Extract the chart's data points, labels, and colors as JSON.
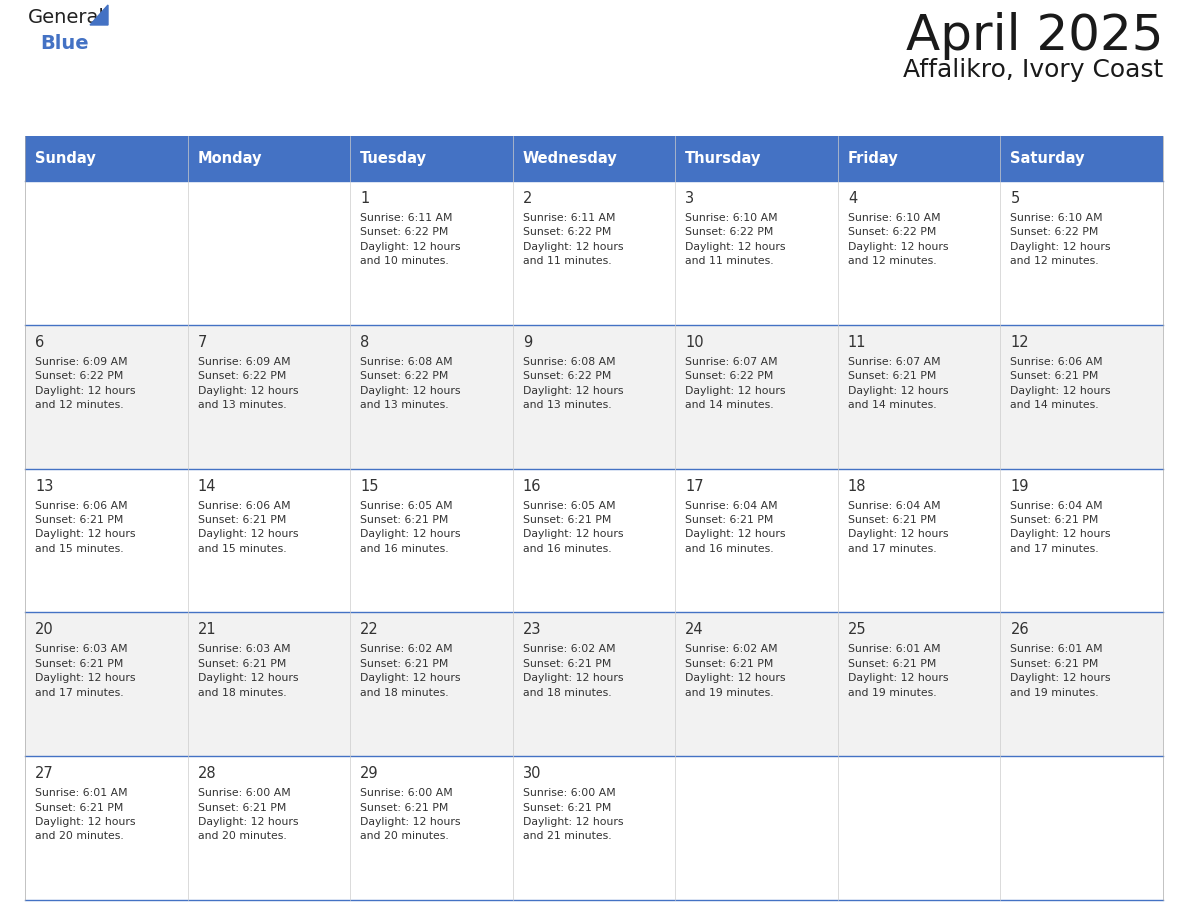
{
  "title": "April 2025",
  "subtitle": "Affalikro, Ivory Coast",
  "header_color": "#4472C4",
  "header_text_color": "#FFFFFF",
  "row_bg_colors": [
    "#FFFFFF",
    "#F2F2F2"
  ],
  "text_color": "#333333",
  "border_color": "#4472C4",
  "days_of_week": [
    "Sunday",
    "Monday",
    "Tuesday",
    "Wednesday",
    "Thursday",
    "Friday",
    "Saturday"
  ],
  "weeks": [
    [
      {
        "date": "",
        "info": ""
      },
      {
        "date": "",
        "info": ""
      },
      {
        "date": "1",
        "info": "Sunrise: 6:11 AM\nSunset: 6:22 PM\nDaylight: 12 hours\nand 10 minutes."
      },
      {
        "date": "2",
        "info": "Sunrise: 6:11 AM\nSunset: 6:22 PM\nDaylight: 12 hours\nand 11 minutes."
      },
      {
        "date": "3",
        "info": "Sunrise: 6:10 AM\nSunset: 6:22 PM\nDaylight: 12 hours\nand 11 minutes."
      },
      {
        "date": "4",
        "info": "Sunrise: 6:10 AM\nSunset: 6:22 PM\nDaylight: 12 hours\nand 12 minutes."
      },
      {
        "date": "5",
        "info": "Sunrise: 6:10 AM\nSunset: 6:22 PM\nDaylight: 12 hours\nand 12 minutes."
      }
    ],
    [
      {
        "date": "6",
        "info": "Sunrise: 6:09 AM\nSunset: 6:22 PM\nDaylight: 12 hours\nand 12 minutes."
      },
      {
        "date": "7",
        "info": "Sunrise: 6:09 AM\nSunset: 6:22 PM\nDaylight: 12 hours\nand 13 minutes."
      },
      {
        "date": "8",
        "info": "Sunrise: 6:08 AM\nSunset: 6:22 PM\nDaylight: 12 hours\nand 13 minutes."
      },
      {
        "date": "9",
        "info": "Sunrise: 6:08 AM\nSunset: 6:22 PM\nDaylight: 12 hours\nand 13 minutes."
      },
      {
        "date": "10",
        "info": "Sunrise: 6:07 AM\nSunset: 6:22 PM\nDaylight: 12 hours\nand 14 minutes."
      },
      {
        "date": "11",
        "info": "Sunrise: 6:07 AM\nSunset: 6:21 PM\nDaylight: 12 hours\nand 14 minutes."
      },
      {
        "date": "12",
        "info": "Sunrise: 6:06 AM\nSunset: 6:21 PM\nDaylight: 12 hours\nand 14 minutes."
      }
    ],
    [
      {
        "date": "13",
        "info": "Sunrise: 6:06 AM\nSunset: 6:21 PM\nDaylight: 12 hours\nand 15 minutes."
      },
      {
        "date": "14",
        "info": "Sunrise: 6:06 AM\nSunset: 6:21 PM\nDaylight: 12 hours\nand 15 minutes."
      },
      {
        "date": "15",
        "info": "Sunrise: 6:05 AM\nSunset: 6:21 PM\nDaylight: 12 hours\nand 16 minutes."
      },
      {
        "date": "16",
        "info": "Sunrise: 6:05 AM\nSunset: 6:21 PM\nDaylight: 12 hours\nand 16 minutes."
      },
      {
        "date": "17",
        "info": "Sunrise: 6:04 AM\nSunset: 6:21 PM\nDaylight: 12 hours\nand 16 minutes."
      },
      {
        "date": "18",
        "info": "Sunrise: 6:04 AM\nSunset: 6:21 PM\nDaylight: 12 hours\nand 17 minutes."
      },
      {
        "date": "19",
        "info": "Sunrise: 6:04 AM\nSunset: 6:21 PM\nDaylight: 12 hours\nand 17 minutes."
      }
    ],
    [
      {
        "date": "20",
        "info": "Sunrise: 6:03 AM\nSunset: 6:21 PM\nDaylight: 12 hours\nand 17 minutes."
      },
      {
        "date": "21",
        "info": "Sunrise: 6:03 AM\nSunset: 6:21 PM\nDaylight: 12 hours\nand 18 minutes."
      },
      {
        "date": "22",
        "info": "Sunrise: 6:02 AM\nSunset: 6:21 PM\nDaylight: 12 hours\nand 18 minutes."
      },
      {
        "date": "23",
        "info": "Sunrise: 6:02 AM\nSunset: 6:21 PM\nDaylight: 12 hours\nand 18 minutes."
      },
      {
        "date": "24",
        "info": "Sunrise: 6:02 AM\nSunset: 6:21 PM\nDaylight: 12 hours\nand 19 minutes."
      },
      {
        "date": "25",
        "info": "Sunrise: 6:01 AM\nSunset: 6:21 PM\nDaylight: 12 hours\nand 19 minutes."
      },
      {
        "date": "26",
        "info": "Sunrise: 6:01 AM\nSunset: 6:21 PM\nDaylight: 12 hours\nand 19 minutes."
      }
    ],
    [
      {
        "date": "27",
        "info": "Sunrise: 6:01 AM\nSunset: 6:21 PM\nDaylight: 12 hours\nand 20 minutes."
      },
      {
        "date": "28",
        "info": "Sunrise: 6:00 AM\nSunset: 6:21 PM\nDaylight: 12 hours\nand 20 minutes."
      },
      {
        "date": "29",
        "info": "Sunrise: 6:00 AM\nSunset: 6:21 PM\nDaylight: 12 hours\nand 20 minutes."
      },
      {
        "date": "30",
        "info": "Sunrise: 6:00 AM\nSunset: 6:21 PM\nDaylight: 12 hours\nand 21 minutes."
      },
      {
        "date": "",
        "info": ""
      },
      {
        "date": "",
        "info": ""
      },
      {
        "date": "",
        "info": ""
      }
    ]
  ],
  "fig_width": 11.88,
  "fig_height": 9.18,
  "dpi": 100
}
